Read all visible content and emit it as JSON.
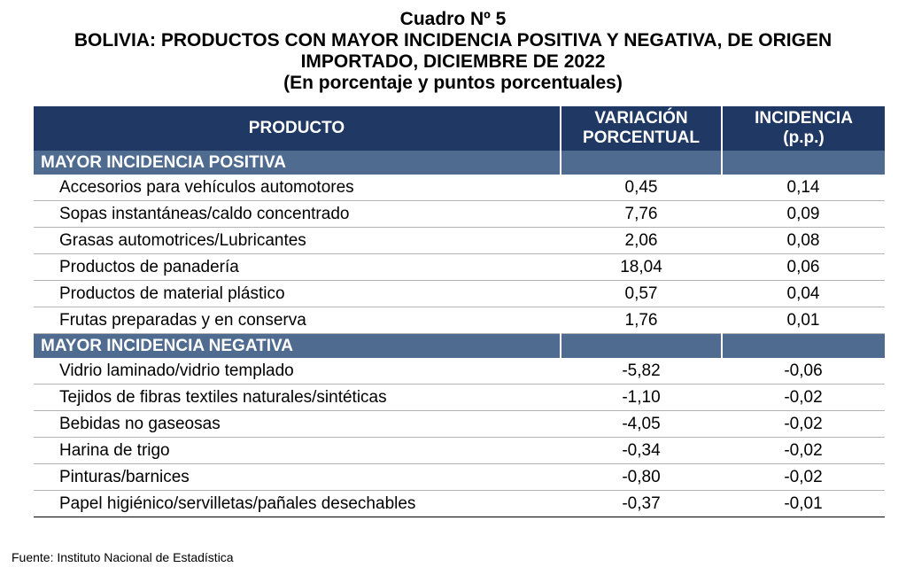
{
  "title": {
    "line1": "Cuadro Nº 5",
    "line2": "BOLIVIA: PRODUCTOS CON MAYOR INCIDENCIA POSITIVA Y NEGATIVA, DE ORIGEN",
    "line3": "IMPORTADO, DICIEMBRE DE 2022",
    "line4": "(En porcentaje y puntos porcentuales)"
  },
  "table": {
    "headers": {
      "product": "PRODUCTO",
      "variation_line1": "VARIACIÓN",
      "variation_line2": "PORCENTUAL",
      "incidence_line1": "INCIDENCIA",
      "incidence_line2": "(p.p.)"
    },
    "positive": {
      "label": "MAYOR INCIDENCIA POSITIVA",
      "rows": [
        {
          "product": "Accesorios para vehículos automotores",
          "variation": "0,45",
          "incidence": "0,14"
        },
        {
          "product": "Sopas instantáneas/caldo concentrado",
          "variation": "7,76",
          "incidence": "0,09"
        },
        {
          "product": "Grasas automotrices/Lubricantes",
          "variation": "2,06",
          "incidence": "0,08"
        },
        {
          "product": "Productos de panadería",
          "variation": "18,04",
          "incidence": "0,06"
        },
        {
          "product": "Productos de material plástico",
          "variation": "0,57",
          "incidence": "0,04"
        },
        {
          "product": "Frutas preparadas y en conserva",
          "variation": "1,76",
          "incidence": "0,01"
        }
      ]
    },
    "negative": {
      "label": "MAYOR INCIDENCIA NEGATIVA",
      "rows": [
        {
          "product": "Vidrio laminado/vidrio templado",
          "variation": "-5,82",
          "incidence": "-0,06"
        },
        {
          "product": "Tejidos de fibras textiles naturales/sintéticas",
          "variation": "-1,10",
          "incidence": "-0,02"
        },
        {
          "product": "Bebidas no gaseosas",
          "variation": "-4,05",
          "incidence": "-0,02"
        },
        {
          "product": "Harina de trigo",
          "variation": "-0,34",
          "incidence": "-0,02"
        },
        {
          "product": "Pinturas/barnices",
          "variation": "-0,80",
          "incidence": "-0,02"
        },
        {
          "product": "Papel higiénico/servilletas/pañales desechables",
          "variation": "-0,37",
          "incidence": "-0,01"
        }
      ]
    }
  },
  "source": "Fuente: Instituto Nacional de Estadística",
  "colors": {
    "header_bg": "#1f3864",
    "section_bg": "#4f6b8f"
  }
}
